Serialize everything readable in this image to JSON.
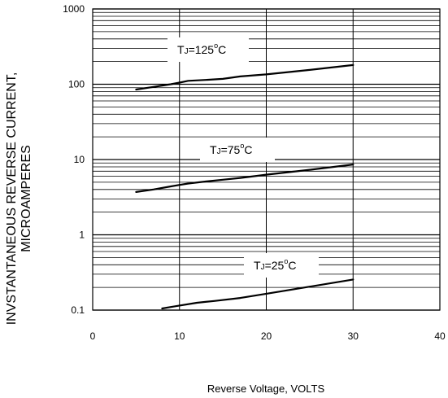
{
  "chart_data": {
    "type": "line",
    "title": "",
    "xlabel": "Reverse Voltage, VOLTS",
    "ylabel_lines": [
      "INVSTANTANEOUS REVERSE CURRENT,",
      "MICROAMPERES"
    ],
    "xlim": [
      0,
      40
    ],
    "ylim": [
      0.1,
      1000
    ],
    "yscale": "log",
    "grid": true,
    "x_ticks": [
      0,
      10,
      20,
      30,
      40
    ],
    "x_tick_labels": [
      "0",
      "10",
      "20",
      "30",
      "40"
    ],
    "y_ticks": [
      0.1,
      1,
      10,
      100,
      1000
    ],
    "y_tick_labels": [
      "0.1",
      "1",
      "10",
      "100",
      "1000"
    ],
    "series": [
      {
        "name": "TJ=125°C",
        "label": {
          "T": "T",
          "sub": "J",
          "eq": "=125",
          "sup": "o",
          "unit": "C"
        },
        "x": [
          5,
          7,
          9,
          10,
          11,
          13,
          15,
          17,
          20,
          25,
          30
        ],
        "y": [
          85,
          92,
          100,
          105,
          111,
          114,
          118,
          127,
          135,
          155,
          180
        ]
      },
      {
        "name": "TJ=75°C",
        "label": {
          "T": "T",
          "sub": "J",
          "eq": "=75",
          "sup": "o",
          "unit": "C"
        },
        "x": [
          5,
          7,
          9,
          10,
          11,
          13,
          15,
          17,
          20,
          25,
          30
        ],
        "y": [
          3.7,
          4.0,
          4.4,
          4.6,
          4.8,
          5.1,
          5.4,
          5.7,
          6.3,
          7.3,
          8.6
        ]
      },
      {
        "name": "TJ=25°C",
        "label": {
          "T": "T",
          "sub": "J",
          "eq": "=25",
          "sup": "o",
          "unit": "C"
        },
        "x": [
          8,
          9,
          10,
          12,
          14,
          17,
          20,
          25,
          30
        ],
        "y": [
          0.105,
          0.11,
          0.115,
          0.125,
          0.132,
          0.145,
          0.165,
          0.205,
          0.255
        ]
      }
    ]
  }
}
